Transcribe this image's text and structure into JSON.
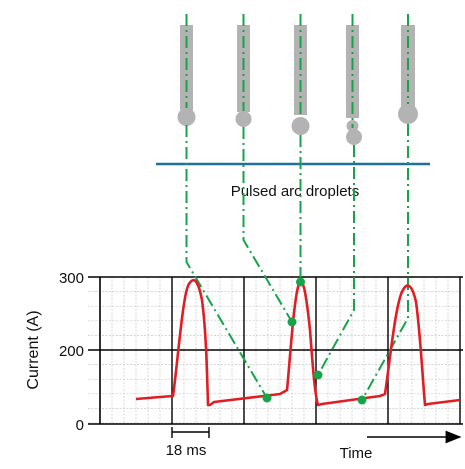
{
  "diagram": {
    "caption": "Pulsed arc droplets",
    "colors": {
      "electrode": "#b3b3b3",
      "workpiece_line": "#1f6f9f",
      "guide_line": "#16a34a",
      "current_trace": "#e11d24",
      "grid_minor": "#c8c8c8",
      "grid_major": "#000000",
      "axis": "#000000"
    }
  },
  "chart": {
    "y_label": "Current (A)",
    "x_label": "Time",
    "y_ticks": [
      "300",
      "200",
      "0"
    ],
    "scale_bar_label": "18 ms"
  }
}
